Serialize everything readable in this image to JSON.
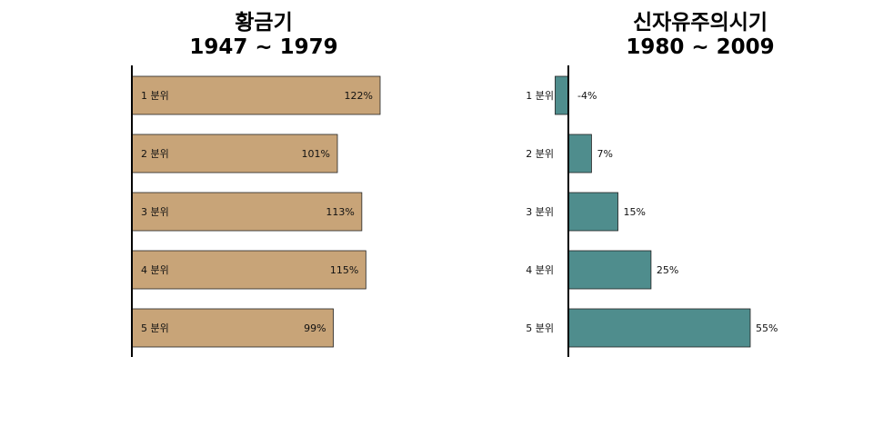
{
  "chart_data": [
    {
      "type": "bar",
      "orientation": "horizontal",
      "title": [
        "황금기",
        "1947 ~ 1979"
      ],
      "categories": [
        "1 분위",
        "2 분위",
        "3 분위",
        "4 분위",
        "5 분위"
      ],
      "values": [
        122,
        101,
        113,
        115,
        99
      ],
      "value_labels": [
        "122%",
        "101%",
        "113%",
        "115%",
        "99%"
      ],
      "xlim": [
        0,
        130
      ],
      "color": "#c8a478",
      "category_label_position": "inside-left",
      "value_label_position": "inside-end"
    },
    {
      "type": "bar",
      "orientation": "horizontal",
      "title": [
        "신자유주의시기",
        "1980 ~ 2009"
      ],
      "categories": [
        "1 분위",
        "2 분위",
        "3 분위",
        "4 분위",
        "5 분위"
      ],
      "values": [
        -4,
        7,
        15,
        25,
        55
      ],
      "value_labels": [
        "-4%",
        "7%",
        "15%",
        "25%",
        "55%"
      ],
      "xlim": [
        -4,
        55
      ],
      "color": "#4f8d8d",
      "category_label_position": "outside-left",
      "value_label_position": "outside-end"
    }
  ]
}
